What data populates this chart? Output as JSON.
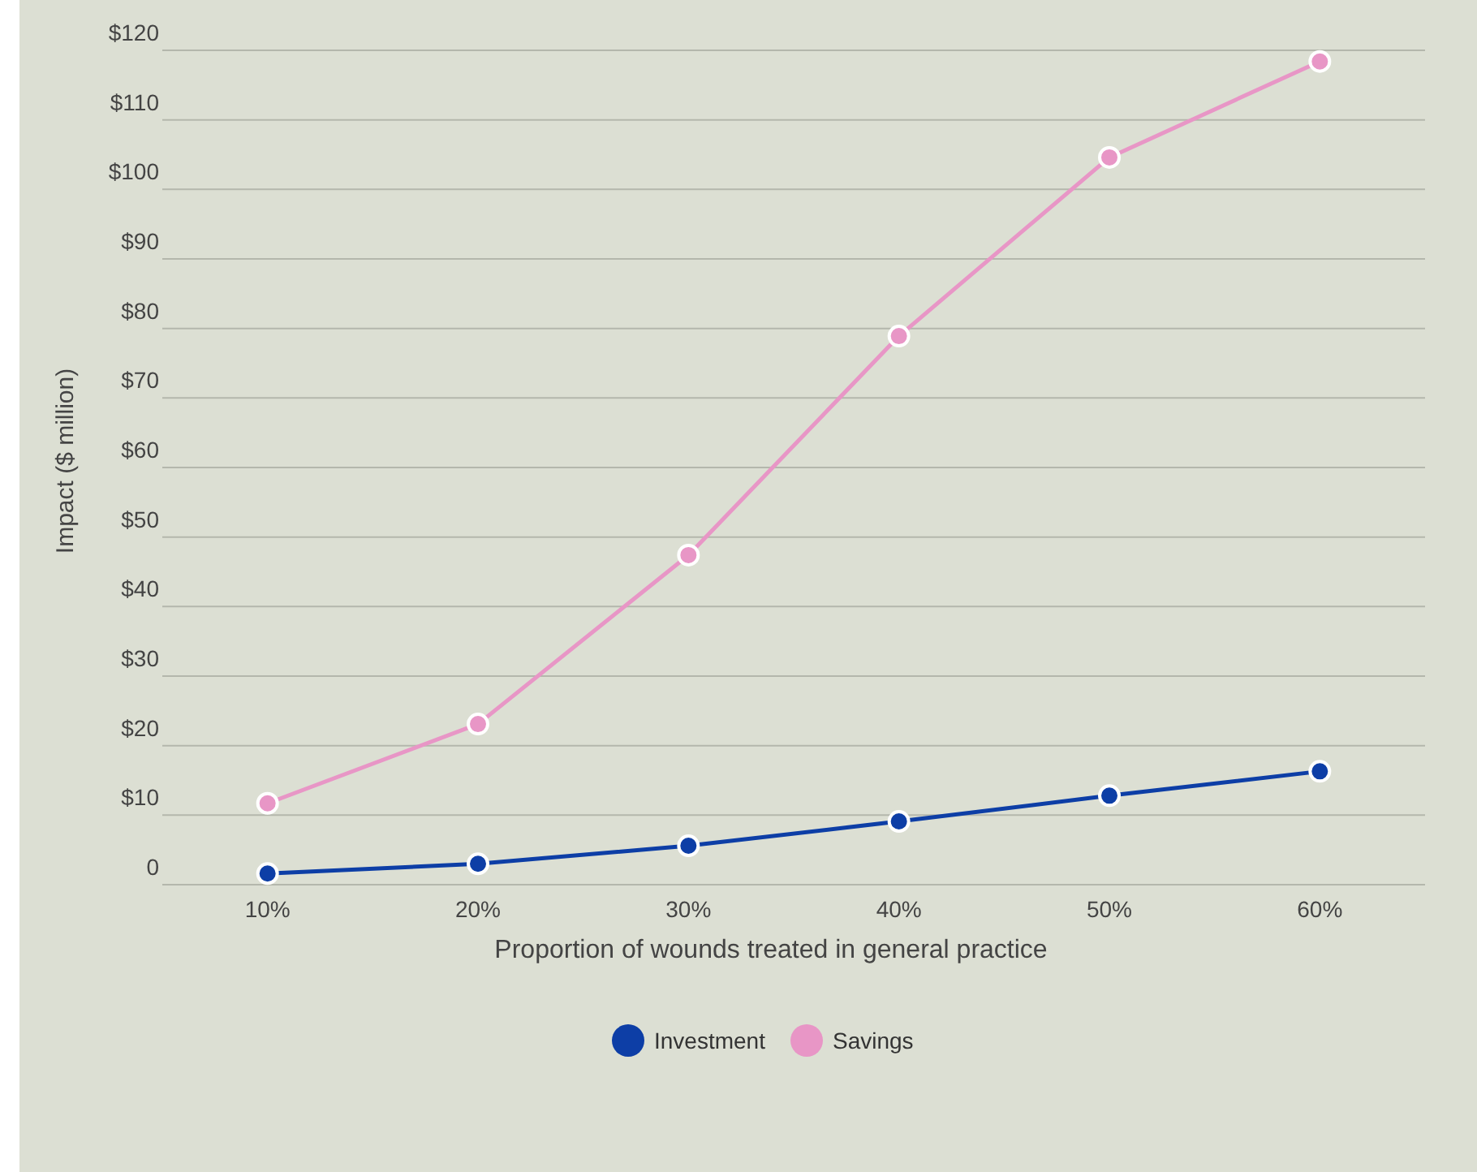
{
  "chart_data": {
    "type": "line",
    "xlabel": "Proportion of wounds treated in general practice",
    "ylabel": "Impact ($ million)",
    "categories": [
      "10%",
      "20%",
      "30%",
      "40%",
      "50%",
      "60%"
    ],
    "series": [
      {
        "name": "Investment",
        "color": "#0d3ea6",
        "values": [
          1.6,
          3.0,
          5.6,
          9.1,
          12.8,
          16.3
        ]
      },
      {
        "name": "Savings",
        "color": "#e896c6",
        "values": [
          11.7,
          23.1,
          47.4,
          78.9,
          104.6,
          118.4
        ]
      }
    ],
    "ylim": [
      0,
      120
    ],
    "yticks": [
      {
        "value": 0,
        "label": "0"
      },
      {
        "value": 10,
        "label": "$10"
      },
      {
        "value": 20,
        "label": "$20"
      },
      {
        "value": 30,
        "label": "$30"
      },
      {
        "value": 40,
        "label": "$40"
      },
      {
        "value": 50,
        "label": "$50"
      },
      {
        "value": 60,
        "label": "$60"
      },
      {
        "value": 70,
        "label": "$70"
      },
      {
        "value": 80,
        "label": "$80"
      },
      {
        "value": 90,
        "label": "$90"
      },
      {
        "value": 100,
        "label": "$100"
      },
      {
        "value": 110,
        "label": "$110"
      },
      {
        "value": 120,
        "label": "$120"
      }
    ],
    "grid": "y",
    "legend": "bottom",
    "marker": "circle",
    "line_style": "solid"
  }
}
